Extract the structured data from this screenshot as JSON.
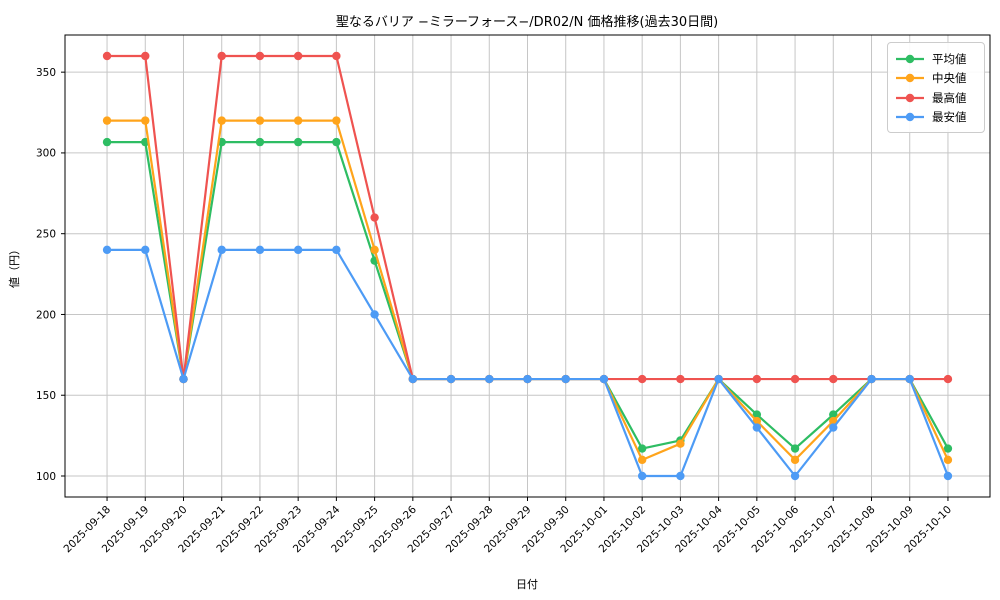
{
  "chart_data": {
    "type": "line",
    "title": "聖なるバリア −ミラーフォース−/DR02/N 価格推移(過去30日間)",
    "xlabel": "日付",
    "ylabel": "値（円）",
    "x": [
      "2025-09-18",
      "2025-09-19",
      "2025-09-20",
      "2025-09-21",
      "2025-09-22",
      "2025-09-23",
      "2025-09-24",
      "2025-09-25",
      "2025-09-26",
      "2025-09-27",
      "2025-09-28",
      "2025-09-29",
      "2025-09-30",
      "2025-10-01",
      "2025-10-02",
      "2025-10-03",
      "2025-10-04",
      "2025-10-05",
      "2025-10-06",
      "2025-10-07",
      "2025-10-08",
      "2025-10-09",
      "2025-10-10"
    ],
    "series": [
      {
        "name": "平均値",
        "color": "#2ebd63",
        "values": [
          306.7,
          306.7,
          160,
          306.7,
          306.7,
          306.7,
          306.7,
          233.3,
          160,
          160,
          160,
          160,
          160,
          160,
          117,
          122,
          160,
          138,
          117,
          138,
          160,
          160,
          117
        ]
      },
      {
        "name": "中央値",
        "color": "#ffa41b",
        "values": [
          320,
          320,
          160,
          320,
          320,
          320,
          320,
          240,
          160,
          160,
          160,
          160,
          160,
          160,
          110,
          120,
          160,
          134,
          110,
          134,
          160,
          160,
          110
        ]
      },
      {
        "name": "最高値",
        "color": "#ef5350",
        "values": [
          360,
          360,
          160,
          360,
          360,
          360,
          360,
          260,
          160,
          160,
          160,
          160,
          160,
          160,
          160,
          160,
          160,
          160,
          160,
          160,
          160,
          160,
          160
        ]
      },
      {
        "name": "最安値",
        "color": "#4d9bf5",
        "values": [
          240,
          240,
          160,
          240,
          240,
          240,
          240,
          200,
          160,
          160,
          160,
          160,
          160,
          160,
          100,
          100,
          160,
          130,
          100,
          130,
          160,
          160,
          100
        ]
      }
    ],
    "yticks": [
      100,
      150,
      200,
      250,
      300,
      350
    ],
    "ylim": [
      87,
      373
    ],
    "grid": true,
    "grid_color": "#c6c6c6",
    "legend_position": "upper-right",
    "background": "#ffffff"
  }
}
